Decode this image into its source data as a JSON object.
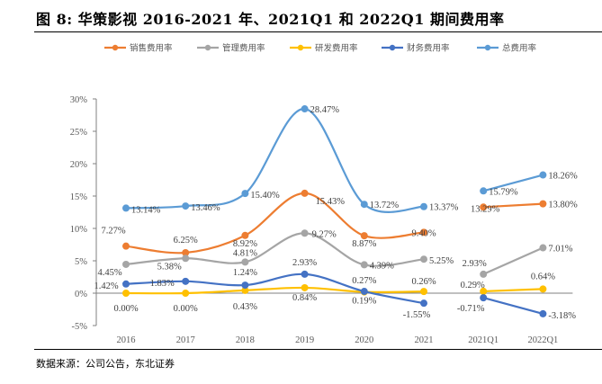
{
  "header": {
    "title": "图 8: 华策影视 2016-2021 年、2021Q1 和 2022Q1 期间费用率"
  },
  "footer": {
    "source": "数据来源：公司公告，东北证券"
  },
  "chart_data": {
    "type": "line",
    "title": "图 8: 华策影视 2016-2021 年、2021Q1 和 2022Q1 期间费用率",
    "xlabel": "",
    "ylabel": "",
    "categories": [
      "2016",
      "2017",
      "2018",
      "2019",
      "2020",
      "2021",
      "2021Q1",
      "2022Q1"
    ],
    "ylim": [
      -5,
      30
    ],
    "yticks": [
      -5,
      0,
      5,
      10,
      15,
      20,
      25,
      30
    ],
    "ytick_labels": [
      "-5%",
      "0%",
      "5%",
      "10%",
      "15%",
      "20%",
      "25%",
      "30%"
    ],
    "grid": false,
    "legend_position": "top-center",
    "segment_break_after_index": 5,
    "series": [
      {
        "name": "销售费用率",
        "color": "#ED7D31",
        "values": [
          7.27,
          6.25,
          8.92,
          15.43,
          8.87,
          9.4,
          13.29,
          13.8
        ],
        "labels": [
          "7.27%",
          "6.25%",
          "8.92%",
          "15.43%",
          "8.87%",
          "9.40%",
          "13.29%",
          "13.80%"
        ]
      },
      {
        "name": "管理费用率",
        "color": "#A5A5A5",
        "values": [
          4.45,
          5.38,
          4.81,
          9.27,
          4.39,
          5.25,
          2.93,
          7.01
        ],
        "labels": [
          "4.45%",
          "5.38%",
          "4.81%",
          "9.27%",
          "4.39%",
          "5.25%",
          "2.93%",
          "7.01%"
        ]
      },
      {
        "name": "研发费用率",
        "color": "#FFC000",
        "values": [
          0.0,
          0.0,
          0.43,
          0.84,
          0.19,
          0.26,
          0.29,
          0.64
        ],
        "labels": [
          "0.00%",
          "0.00%",
          "0.43%",
          "0.84%",
          "0.19%",
          "0.26%",
          "0.29%",
          "0.64%"
        ]
      },
      {
        "name": "财务费用率",
        "color": "#4472C4",
        "values": [
          1.42,
          1.83,
          1.24,
          2.93,
          0.27,
          -1.55,
          -0.71,
          -3.18
        ],
        "labels": [
          "1.42%",
          "1.83%",
          "1.24%",
          "2.93%",
          "0.27%",
          "-1.55%",
          "-0.71%",
          "-3.18%"
        ]
      },
      {
        "name": "总费用率",
        "color": "#5B9BD5",
        "values": [
          13.14,
          13.46,
          15.4,
          28.47,
          13.72,
          13.37,
          15.79,
          18.26
        ],
        "labels": [
          "13.14%",
          "13.46%",
          "15.40%",
          "28.47%",
          "13.72%",
          "13.37%",
          "15.79%",
          "18.26%"
        ]
      }
    ]
  }
}
